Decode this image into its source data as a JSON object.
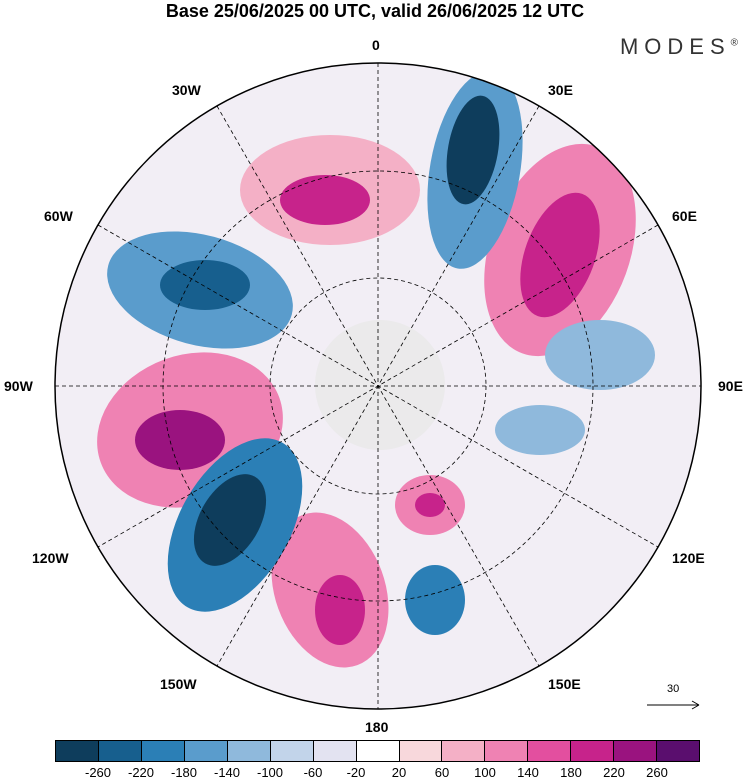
{
  "title": "Base 25/06/2025 00 UTC, valid 26/06/2025 12 UTC",
  "brand": "MODES",
  "brand_mark": "®",
  "longitude_labels": {
    "top": "0",
    "bottom": "180",
    "left": "90W",
    "right": "90E",
    "nw1": "30W",
    "nw2": "60W",
    "ne1": "30E",
    "ne2": "60E",
    "sw1": "120W",
    "sw2": "150W",
    "se1": "120E",
    "se2": "150E"
  },
  "reference_vector": "30",
  "colorbar": {
    "colors": [
      "#0e3d5c",
      "#175f8e",
      "#2b7fb6",
      "#5a9ccc",
      "#8fb9dc",
      "#c2d4ea",
      "#e3e3f1",
      "#ffffff",
      "#f8d8dc",
      "#f4b0c6",
      "#ef82b3",
      "#e34f9f",
      "#c7238b",
      "#9a137f",
      "#5a0e6e"
    ],
    "tick_labels": [
      "-260",
      "-220",
      "-180",
      "-140",
      "-100",
      "-60",
      "-20",
      "20",
      "60",
      "100",
      "140",
      "180",
      "220",
      "260"
    ]
  }
}
